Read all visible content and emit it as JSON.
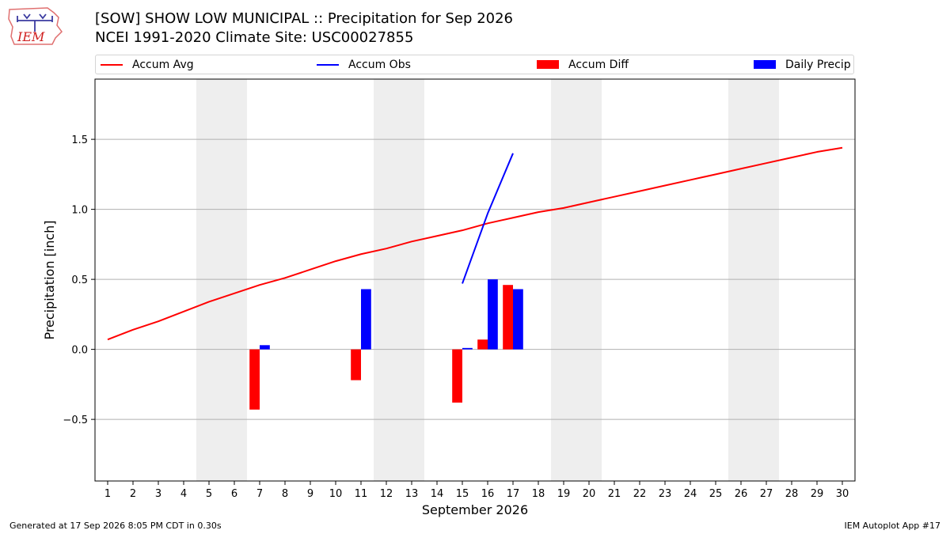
{
  "header": {
    "title": "[SOW] SHOW LOW MUNICIPAL :: Precipitation for Sep 2026",
    "subtitle": "NCEI 1991-2020 Climate Site: USC00027855"
  },
  "logo": {
    "text": "IEM",
    "icon": "iem-iowa-logo"
  },
  "legend": {
    "items": [
      {
        "label": "Accum Avg",
        "kind": "line",
        "color": "#ff0000"
      },
      {
        "label": "Accum Obs",
        "kind": "line",
        "color": "#0000ff"
      },
      {
        "label": "Accum Diff",
        "kind": "box",
        "color": "#ff0000"
      },
      {
        "label": "Daily Precip",
        "kind": "box",
        "color": "#0000ff"
      }
    ]
  },
  "footer": {
    "left": "Generated at 17 Sep 2026 8:05 PM CDT in 0.30s",
    "right": "IEM Autoplot App #17"
  },
  "chart_data": {
    "type": "bar",
    "xlabel": "September 2026",
    "ylabel": "Precipitation [inch]",
    "xlim": [
      0.5,
      30.5
    ],
    "ylim": [
      -0.94,
      1.93
    ],
    "x_ticks": [
      1,
      2,
      3,
      4,
      5,
      6,
      7,
      8,
      9,
      10,
      11,
      12,
      13,
      14,
      15,
      16,
      17,
      18,
      19,
      20,
      21,
      22,
      23,
      24,
      25,
      26,
      27,
      28,
      29,
      30
    ],
    "y_ticks": [
      -0.5,
      0.0,
      0.5,
      1.0,
      1.5
    ],
    "y_tick_labels": [
      "−0.5",
      "0.0",
      "0.5",
      "1.0",
      "1.5"
    ],
    "grid": "horizontal",
    "weekend_shading": [
      [
        4.5,
        6.5
      ],
      [
        11.5,
        13.5
      ],
      [
        18.5,
        20.5
      ],
      [
        25.5,
        27.5
      ]
    ],
    "shade_color": "#eeeeee",
    "accum_avg": {
      "color": "#ff0000",
      "x": [
        1,
        2,
        3,
        4,
        5,
        6,
        7,
        8,
        9,
        10,
        11,
        12,
        13,
        14,
        15,
        16,
        17,
        18,
        19,
        20,
        21,
        22,
        23,
        24,
        25,
        26,
        27,
        28,
        29,
        30
      ],
      "values": [
        0.07,
        0.14,
        0.2,
        0.27,
        0.34,
        0.4,
        0.46,
        0.51,
        0.57,
        0.63,
        0.68,
        0.72,
        0.77,
        0.81,
        0.85,
        0.9,
        0.94,
        0.98,
        1.01,
        1.05,
        1.09,
        1.13,
        1.17,
        1.21,
        1.25,
        1.29,
        1.33,
        1.37,
        1.41,
        1.44
      ]
    },
    "accum_obs": {
      "color": "#0000ff",
      "x": [
        15,
        16,
        17
      ],
      "values": [
        0.47,
        0.97,
        1.4
      ]
    },
    "accum_diff": {
      "color": "#ff0000",
      "x": [
        7,
        11,
        15,
        16,
        17
      ],
      "values": [
        -0.43,
        -0.22,
        -0.38,
        0.07,
        0.46
      ]
    },
    "daily_precip": {
      "color": "#0000ff",
      "x": [
        7,
        11,
        15,
        16,
        17
      ],
      "values": [
        0.03,
        0.43,
        0.01,
        0.5,
        0.43
      ]
    }
  }
}
